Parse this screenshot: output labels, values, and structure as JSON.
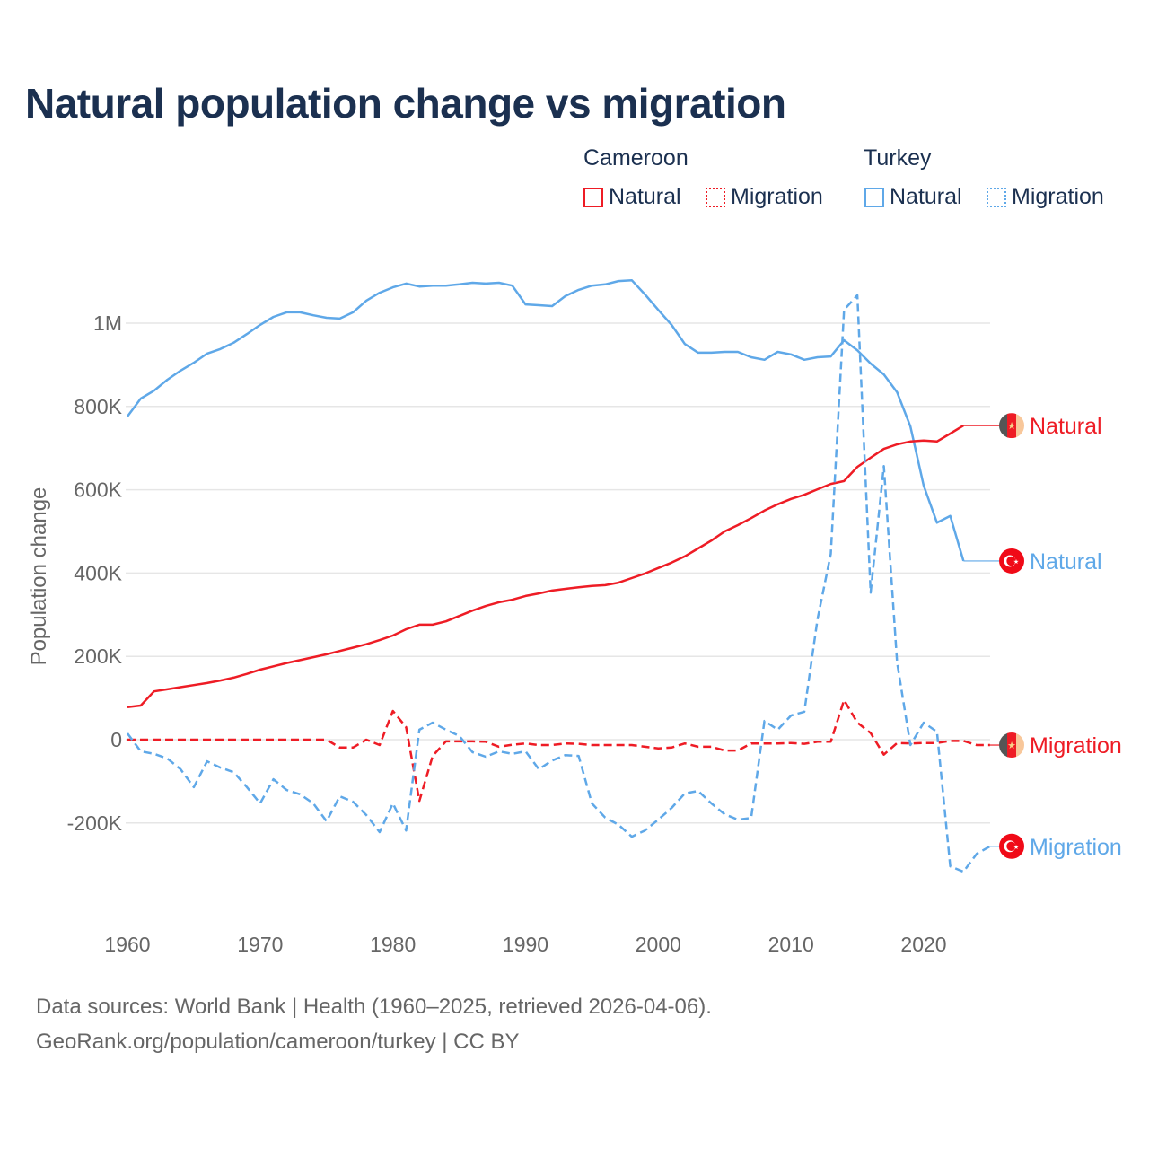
{
  "title": "Natural population change vs migration",
  "legend": {
    "groups": [
      {
        "label": "Cameroon",
        "items": [
          {
            "label": "Natural",
            "style": "solid"
          },
          {
            "label": "Migration",
            "style": "dotted"
          }
        ],
        "color": "#ee1c25"
      },
      {
        "label": "Turkey",
        "items": [
          {
            "label": "Natural",
            "style": "solid"
          },
          {
            "label": "Migration",
            "style": "dotted"
          }
        ],
        "color": "#5fa8e8"
      }
    ]
  },
  "footer": {
    "line1": "Data sources: World Bank | Health (1960–2025, retrieved 2026-04-06).",
    "line2": "GeoRank.org/population/cameroon/turkey | CC BY"
  },
  "chart_data": {
    "type": "line",
    "title": "Natural population change vs migration",
    "xlabel": "",
    "ylabel": "Population change",
    "xlim": [
      1960,
      2025
    ],
    "ylim": [
      -350000,
      1150000
    ],
    "x_ticks": [
      {
        "v": 1960,
        "label": "1960"
      },
      {
        "v": 1970,
        "label": "1970"
      },
      {
        "v": 1980,
        "label": "1980"
      },
      {
        "v": 1990,
        "label": "1990"
      },
      {
        "v": 2000,
        "label": "2000"
      },
      {
        "v": 2010,
        "label": "2010"
      },
      {
        "v": 2020,
        "label": "2020"
      }
    ],
    "y_ticks": [
      {
        "v": -200000,
        "label": "-200K"
      },
      {
        "v": 0,
        "label": "0"
      },
      {
        "v": 200000,
        "label": "200K"
      },
      {
        "v": 400000,
        "label": "400K"
      },
      {
        "v": 600000,
        "label": "600K"
      },
      {
        "v": 800000,
        "label": "800K"
      },
      {
        "v": 1000000,
        "label": "1M"
      }
    ],
    "grid": true,
    "series": [
      {
        "name": "Turkey Natural",
        "end_label": "Natural",
        "country": "Turkey",
        "color": "#5fa8e8",
        "dash": false,
        "start": 1960,
        "values": [
          776,
          819,
          838,
          864,
          886,
          905,
          927,
          938,
          953,
          974,
          996,
          1015,
          1026,
          1026,
          1019,
          1013,
          1011,
          1026,
          1054,
          1073,
          1086,
          1095,
          1088,
          1090,
          1090,
          1093,
          1097,
          1095,
          1097,
          1090,
          1045,
          1043,
          1041,
          1065,
          1080,
          1090,
          1093,
          1101,
          1103,
          1069,
          1032,
          996,
          950,
          929,
          929,
          931,
          931,
          918,
          912,
          931,
          925,
          912,
          918,
          920,
          959,
          935,
          903,
          877,
          834,
          752,
          610,
          521,
          537,
          429
        ]
      },
      {
        "name": "Cameroon Natural",
        "end_label": "Natural",
        "country": "Cameroon",
        "color": "#ee1c25",
        "dash": false,
        "start": 1960,
        "values": [
          78,
          82,
          116,
          121,
          126,
          131,
          136,
          142,
          149,
          158,
          168,
          176,
          184,
          191,
          198,
          205,
          213,
          221,
          229,
          239,
          250,
          265,
          276,
          276,
          284,
          297,
          310,
          321,
          330,
          336,
          345,
          351,
          358,
          362,
          366,
          369,
          371,
          377,
          388,
          399,
          412,
          425,
          440,
          459,
          478,
          500,
          515,
          532,
          550,
          565,
          578,
          588,
          601,
          614,
          621,
          655,
          677,
          698,
          709,
          716,
          718,
          716,
          735,
          754
        ]
      },
      {
        "name": "Cameroon Migration",
        "end_label": "Migration",
        "country": "Cameroon",
        "color": "#ee1c25",
        "dash": true,
        "start": 1960,
        "values": [
          0,
          0,
          0,
          0,
          0,
          0,
          0,
          0,
          0,
          0,
          0,
          0,
          0,
          0,
          0,
          0,
          -19,
          -19,
          0,
          -13,
          69,
          30,
          -147,
          -39,
          -4,
          -4,
          -4,
          -5,
          -17,
          -12,
          -9,
          -13,
          -13,
          -9,
          -10,
          -13,
          -13,
          -13,
          -13,
          -17,
          -21,
          -19,
          -9,
          -17,
          -17,
          -26,
          -26,
          -9,
          -9,
          -9,
          -8,
          -10,
          -5,
          -5,
          95,
          41,
          16,
          -36,
          -8,
          -9,
          -8,
          -8,
          -3,
          -3,
          -13,
          -13
        ]
      },
      {
        "name": "Turkey Migration",
        "end_label": "Migration",
        "country": "Turkey",
        "color": "#5fa8e8",
        "dash": true,
        "start": 1960,
        "values": [
          15,
          -28,
          -34,
          -45,
          -71,
          -114,
          -52,
          -67,
          -78,
          -114,
          -153,
          -95,
          -121,
          -131,
          -153,
          -196,
          -136,
          -149,
          -181,
          -222,
          -153,
          -218,
          24,
          41,
          24,
          9,
          -30,
          -41,
          -28,
          -34,
          -28,
          -71,
          -50,
          -37,
          -39,
          -153,
          -187,
          -204,
          -233,
          -218,
          -192,
          -164,
          -129,
          -123,
          -153,
          -179,
          -192,
          -188,
          45,
          24,
          58,
          67,
          289,
          446,
          1032,
          1067,
          353,
          657,
          185,
          -13,
          41,
          19,
          -304,
          -317,
          -274,
          -256
        ]
      }
    ],
    "value_unit": "thousands"
  }
}
